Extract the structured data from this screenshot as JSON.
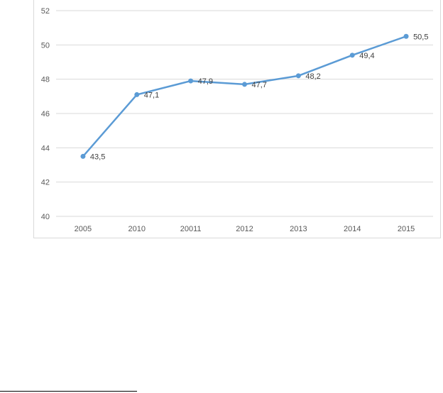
{
  "chart_data": {
    "type": "line",
    "categories": [
      "2005",
      "2010",
      "20011",
      "2012",
      "2013",
      "2014",
      "2015"
    ],
    "series": [
      {
        "values": [
          43.5,
          47.1,
          47.9,
          47.7,
          48.2,
          49.4,
          50.5
        ],
        "labels": [
          "43,5",
          "47,1",
          "47,9",
          "47,7",
          "48,2",
          "49,4",
          "50,5"
        ],
        "color": "#5b9bd5"
      }
    ],
    "ylim": [
      40,
      52
    ],
    "yticks": [
      "40",
      "42",
      "44",
      "46",
      "48",
      "50",
      "52"
    ],
    "grid": true,
    "legend": "none",
    "gridline_color": "#d9d9d9",
    "label_color": "#595959"
  }
}
